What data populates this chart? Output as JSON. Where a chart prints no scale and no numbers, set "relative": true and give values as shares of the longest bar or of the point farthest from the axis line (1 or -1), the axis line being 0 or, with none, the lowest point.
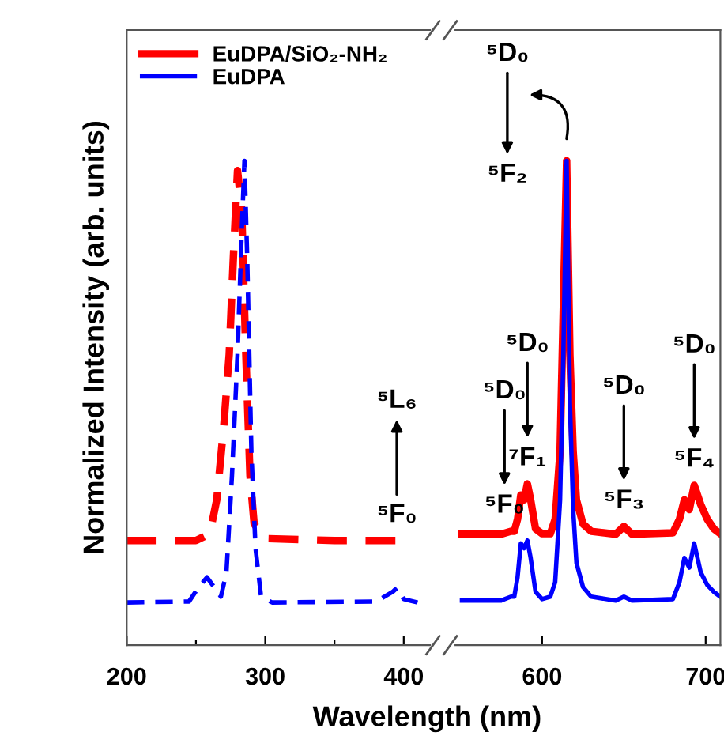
{
  "chart_data": [
    {
      "type": "line",
      "ylabel": "Normalized Intensity (arb. units)",
      "xlabel": "Wavelength (nm)",
      "relative": true,
      "line_style": "dashed",
      "tick_labels": "x",
      "grid": false,
      "xlim": [
        200,
        419
      ],
      "xticks": [
        200,
        {
          "value": 250,
          "label": null
        },
        300,
        {
          "value": 350,
          "label": null
        },
        400
      ],
      "series": [
        {
          "color": "#ff0000",
          "x": [
            200,
            250,
            260,
            265,
            270,
            274,
            277,
            280,
            283,
            286,
            289,
            292,
            300,
            350,
            398
          ],
          "values": [
            0.216,
            0.216,
            0.23,
            0.3,
            0.45,
            0.6,
            0.8,
            0.98,
            0.9,
            0.6,
            0.35,
            0.25,
            0.22,
            0.216,
            0.216
          ]
        },
        {
          "color": "#0000ff",
          "x": [
            200,
            245,
            252,
            258,
            263,
            268,
            272,
            276,
            280,
            283,
            285,
            287,
            290,
            293,
            297,
            305,
            380,
            392,
            395,
            400,
            410
          ],
          "values": [
            0.088,
            0.09,
            0.12,
            0.14,
            0.12,
            0.1,
            0.15,
            0.35,
            0.6,
            0.85,
            1.0,
            0.8,
            0.4,
            0.2,
            0.1,
            0.088,
            0.09,
            0.11,
            0.118,
            0.095,
            0.088
          ]
        }
      ],
      "annotations": [
        "⁵L₆",
        {
          "text": "⁵F₀",
          "x": 395,
          "y": 0.216
        }
      ]
    },
    {
      "type": "line",
      "relative": true,
      "line_style": "solid",
      "tick_labels": "x",
      "grid": false,
      "legend": "top left",
      "xlim": [
        547,
        709
      ],
      "xticks": [
        600,
        700
      ],
      "series": [
        {
          "name": "EuDPA/SiO₂-NH₂",
          "color": "#ff0000",
          "x": [
            551,
            575,
            581,
            583,
            585,
            587,
            589,
            591,
            593,
            596,
            600,
            605,
            608,
            611,
            613,
            615,
            617,
            619,
            621,
            625,
            630,
            645,
            650,
            655,
            680,
            684,
            687,
            690,
            693,
            697,
            701,
            705,
            709
          ],
          "values": [
            0.229,
            0.229,
            0.235,
            0.235,
            0.26,
            0.31,
            0.3,
            0.333,
            0.3,
            0.24,
            0.23,
            0.23,
            0.26,
            0.4,
            0.7,
            1.0,
            0.6,
            0.4,
            0.3,
            0.25,
            0.235,
            0.229,
            0.245,
            0.229,
            0.232,
            0.26,
            0.3,
            0.28,
            0.33,
            0.29,
            0.26,
            0.24,
            0.23
          ]
        },
        {
          "name": "EuDPA",
          "color": "#0000ff",
          "x": [
            551,
            575,
            581,
            583,
            585,
            587,
            589,
            591,
            593,
            596,
            600,
            605,
            608,
            611,
            613,
            615,
            617,
            619,
            621,
            625,
            630,
            645,
            650,
            655,
            680,
            684,
            687,
            690,
            693,
            697,
            701,
            705,
            709
          ],
          "values": [
            0.092,
            0.092,
            0.1,
            0.1,
            0.14,
            0.21,
            0.2,
            0.216,
            0.18,
            0.11,
            0.095,
            0.1,
            0.13,
            0.3,
            0.6,
            1.0,
            0.5,
            0.28,
            0.17,
            0.12,
            0.1,
            0.092,
            0.1,
            0.092,
            0.095,
            0.13,
            0.18,
            0.16,
            0.21,
            0.15,
            0.124,
            0.11,
            0.1
          ]
        }
      ],
      "annotations": [
        "⁵D₀",
        {
          "text": "⁵F₀",
          "x": 577,
          "y": 0.235
        },
        "⁵D₀",
        {
          "text": "⁷F₁",
          "x": 591,
          "y": 0.333
        },
        "⁵D₀",
        {
          "text": "⁵F₂",
          "x": 615,
          "y": 1.0
        },
        "⁵D₀",
        {
          "text": "⁵F₃",
          "x": 650,
          "y": 0.245
        },
        "⁵D₀",
        {
          "text": "⁵F₄",
          "x": 693,
          "y": 0.33
        }
      ]
    }
  ]
}
